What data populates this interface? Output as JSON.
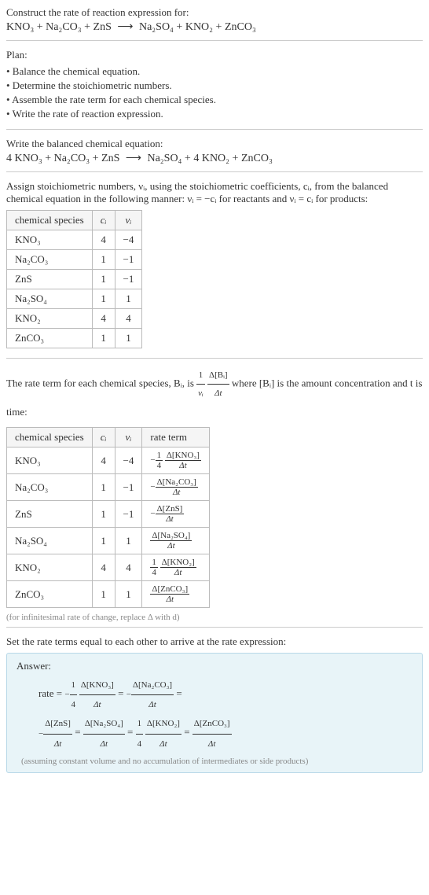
{
  "intro": {
    "line1": "Construct the rate of reaction expression for:",
    "equation_lhs": "KNO₃ + Na₂CO₃ + ZnS",
    "arrow": "⟶",
    "equation_rhs": "Na₂SO₄ + KNO₂ + ZnCO₃"
  },
  "plan": {
    "heading": "Plan:",
    "bullets": [
      "• Balance the chemical equation.",
      "• Determine the stoichiometric numbers.",
      "• Assemble the rate term for each chemical species.",
      "• Write the rate of reaction expression."
    ]
  },
  "balanced": {
    "heading": "Write the balanced chemical equation:",
    "lhs": "4 KNO₃ + Na₂CO₃ + ZnS",
    "arrow": "⟶",
    "rhs": "Na₂SO₄ + 4 KNO₂ + ZnCO₃"
  },
  "stoich": {
    "heading": "Assign stoichiometric numbers, νᵢ, using the stoichiometric coefficients, cᵢ, from the balanced chemical equation in the following manner: νᵢ = −cᵢ for reactants and νᵢ = cᵢ for products:",
    "table": {
      "columns": [
        "chemical species",
        "cᵢ",
        "νᵢ"
      ],
      "column_aligns": [
        "left",
        "center",
        "center"
      ],
      "rows": [
        [
          "KNO₃",
          "4",
          "−4"
        ],
        [
          "Na₂CO₃",
          "1",
          "−1"
        ],
        [
          "ZnS",
          "1",
          "−1"
        ],
        [
          "Na₂SO₄",
          "1",
          "1"
        ],
        [
          "KNO₂",
          "4",
          "4"
        ],
        [
          "ZnCO₃",
          "1",
          "1"
        ]
      ]
    }
  },
  "rateterm": {
    "heading_pre": "The rate term for each chemical species, Bᵢ, is ",
    "heading_post": " where [Bᵢ] is the amount concentration and t is time:",
    "frac_outer_num": "1",
    "frac_outer_den": "νᵢ",
    "frac_inner_num": "Δ[Bᵢ]",
    "frac_inner_den": "Δt",
    "table": {
      "columns": [
        "chemical species",
        "cᵢ",
        "νᵢ",
        "rate term"
      ],
      "rows": [
        {
          "sp": "KNO₃",
          "c": "4",
          "v": "−4",
          "neg": "−",
          "coef_num": "1",
          "coef_den": "4",
          "num": "Δ[KNO₃]",
          "den": "Δt"
        },
        {
          "sp": "Na₂CO₃",
          "c": "1",
          "v": "−1",
          "neg": "−",
          "coef_num": "",
          "coef_den": "",
          "num": "Δ[Na₂CO₃]",
          "den": "Δt"
        },
        {
          "sp": "ZnS",
          "c": "1",
          "v": "−1",
          "neg": "−",
          "coef_num": "",
          "coef_den": "",
          "num": "Δ[ZnS]",
          "den": "Δt"
        },
        {
          "sp": "Na₂SO₄",
          "c": "1",
          "v": "1",
          "neg": "",
          "coef_num": "",
          "coef_den": "",
          "num": "Δ[Na₂SO₄]",
          "den": "Δt"
        },
        {
          "sp": "KNO₂",
          "c": "4",
          "v": "4",
          "neg": "",
          "coef_num": "1",
          "coef_den": "4",
          "num": "Δ[KNO₂]",
          "den": "Δt"
        },
        {
          "sp": "ZnCO₃",
          "c": "1",
          "v": "1",
          "neg": "",
          "coef_num": "",
          "coef_den": "",
          "num": "Δ[ZnCO₃]",
          "den": "Δt"
        }
      ]
    },
    "footnote": "(for infinitesimal rate of change, replace Δ with d)"
  },
  "final": {
    "heading": "Set the rate terms equal to each other to arrive at the rate expression:",
    "answer_label": "Answer:",
    "rate_prefix": "rate = ",
    "terms": [
      {
        "neg": "−",
        "cn": "1",
        "cd": "4",
        "num": "Δ[KNO₃]",
        "den": "Δt"
      },
      {
        "neg": "−",
        "cn": "",
        "cd": "",
        "num": "Δ[Na₂CO₃]",
        "den": "Δt"
      },
      {
        "neg": "−",
        "cn": "",
        "cd": "",
        "num": "Δ[ZnS]",
        "den": "Δt"
      },
      {
        "neg": "",
        "cn": "",
        "cd": "",
        "num": "Δ[Na₂SO₄]",
        "den": "Δt"
      },
      {
        "neg": "",
        "cn": "1",
        "cd": "4",
        "num": "Δ[KNO₂]",
        "den": "Δt"
      },
      {
        "neg": "",
        "cn": "",
        "cd": "",
        "num": "Δ[ZnCO₃]",
        "den": "Δt"
      }
    ],
    "note": "(assuming constant volume and no accumulation of intermediates or side products)"
  },
  "styling": {
    "body_bg": "#ffffff",
    "text_color": "#333333",
    "divider_color": "#cccccc",
    "table_border": "#bbbbbb",
    "table_header_bg": "#f5f5f5",
    "answer_bg": "#e8f4f8",
    "answer_border": "#b8d8e8",
    "footnote_color": "#888888",
    "body_font_size": 13,
    "eq_font_size": 14,
    "footnote_font_size": 11
  }
}
